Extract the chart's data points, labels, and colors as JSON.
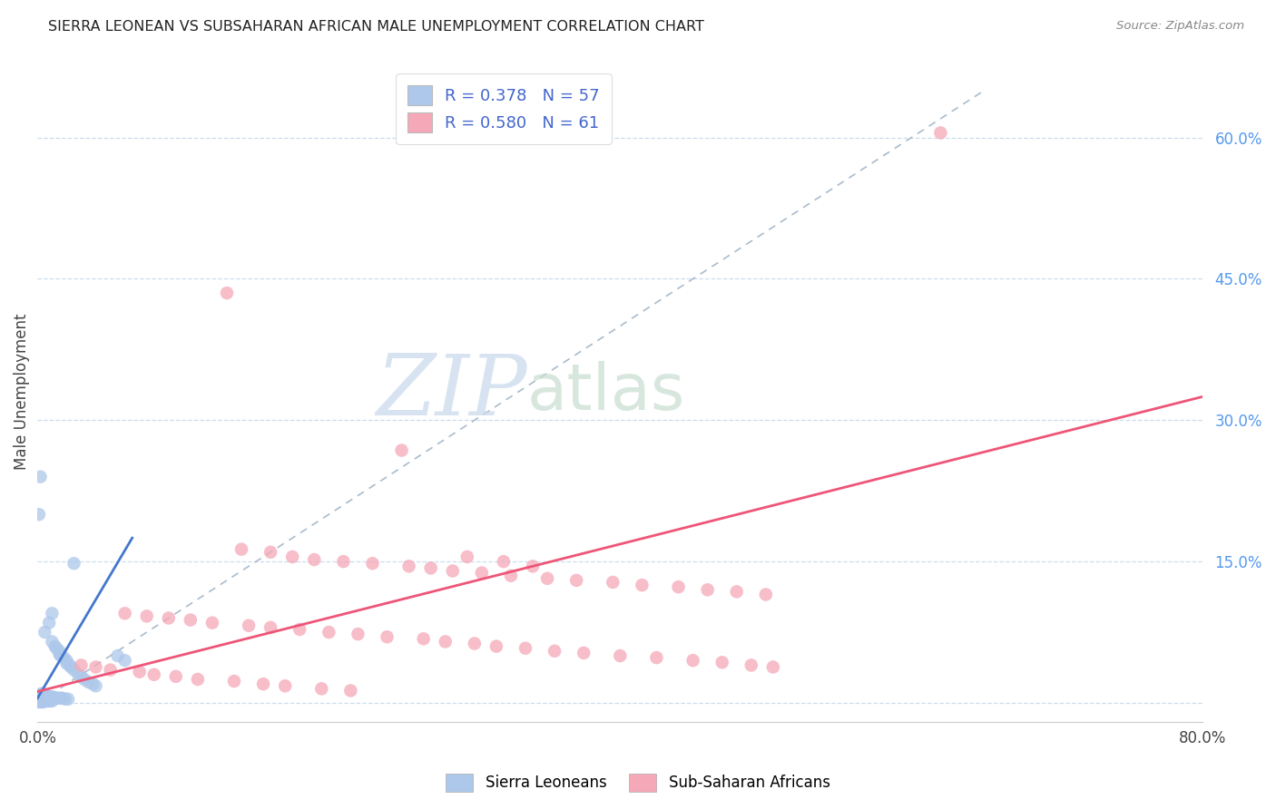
{
  "title": "SIERRA LEONEAN VS SUBSAHARAN AFRICAN MALE UNEMPLOYMENT CORRELATION CHART",
  "source": "Source: ZipAtlas.com",
  "ylabel": "Male Unemployment",
  "xlim": [
    0.0,
    0.8
  ],
  "ylim": [
    -0.02,
    0.68
  ],
  "y_tick_right": [
    0.0,
    0.15,
    0.3,
    0.45,
    0.6
  ],
  "y_tick_right_labels": [
    "",
    "15.0%",
    "30.0%",
    "45.0%",
    "60.0%"
  ],
  "legend_r1": "R = 0.378",
  "legend_n1": "N = 57",
  "legend_r2": "R = 0.580",
  "legend_n2": "N = 61",
  "color_sl": "#adc8ea",
  "color_ssa": "#f5a8b8",
  "color_sl_line": "#4477cc",
  "color_ssa_line": "#ee5577",
  "watermark_zip": "ZIP",
  "watermark_atlas": "atlas",
  "sl_x": [
    0.005,
    0.008,
    0.01,
    0.01,
    0.012,
    0.013,
    0.015,
    0.015,
    0.016,
    0.018,
    0.02,
    0.02,
    0.022,
    0.023,
    0.025,
    0.025,
    0.028,
    0.03,
    0.032,
    0.035,
    0.038,
    0.04,
    0.003,
    0.003,
    0.004,
    0.005,
    0.006,
    0.007,
    0.008,
    0.009,
    0.01,
    0.011,
    0.013,
    0.014,
    0.016,
    0.017,
    0.019,
    0.021,
    0.002,
    0.002,
    0.003,
    0.004,
    0.005,
    0.006,
    0.007,
    0.008,
    0.009,
    0.01,
    0.001,
    0.001,
    0.002,
    0.003,
    0.004,
    0.055,
    0.06,
    0.001,
    0.002
  ],
  "sl_y": [
    0.075,
    0.085,
    0.095,
    0.065,
    0.06,
    0.058,
    0.055,
    0.052,
    0.05,
    0.048,
    0.045,
    0.042,
    0.04,
    0.038,
    0.035,
    0.148,
    0.03,
    0.028,
    0.025,
    0.022,
    0.02,
    0.018,
    0.01,
    0.009,
    0.008,
    0.008,
    0.007,
    0.007,
    0.007,
    0.006,
    0.006,
    0.006,
    0.005,
    0.005,
    0.005,
    0.005,
    0.004,
    0.004,
    0.003,
    0.003,
    0.003,
    0.003,
    0.002,
    0.002,
    0.002,
    0.002,
    0.002,
    0.002,
    0.001,
    0.001,
    0.001,
    0.001,
    0.001,
    0.05,
    0.045,
    0.2,
    0.24
  ],
  "ssa_x": [
    0.62,
    0.13,
    0.25,
    0.295,
    0.32,
    0.34,
    0.14,
    0.16,
    0.175,
    0.19,
    0.21,
    0.23,
    0.255,
    0.27,
    0.285,
    0.305,
    0.325,
    0.35,
    0.37,
    0.395,
    0.415,
    0.44,
    0.46,
    0.48,
    0.5,
    0.06,
    0.075,
    0.09,
    0.105,
    0.12,
    0.145,
    0.16,
    0.18,
    0.2,
    0.22,
    0.24,
    0.265,
    0.28,
    0.3,
    0.315,
    0.335,
    0.355,
    0.375,
    0.4,
    0.425,
    0.45,
    0.47,
    0.03,
    0.04,
    0.05,
    0.07,
    0.08,
    0.095,
    0.11,
    0.135,
    0.155,
    0.17,
    0.195,
    0.215,
    0.49,
    0.505
  ],
  "ssa_y": [
    0.605,
    0.435,
    0.268,
    0.155,
    0.15,
    0.145,
    0.163,
    0.16,
    0.155,
    0.152,
    0.15,
    0.148,
    0.145,
    0.143,
    0.14,
    0.138,
    0.135,
    0.132,
    0.13,
    0.128,
    0.125,
    0.123,
    0.12,
    0.118,
    0.115,
    0.095,
    0.092,
    0.09,
    0.088,
    0.085,
    0.082,
    0.08,
    0.078,
    0.075,
    0.073,
    0.07,
    0.068,
    0.065,
    0.063,
    0.06,
    0.058,
    0.055,
    0.053,
    0.05,
    0.048,
    0.045,
    0.043,
    0.04,
    0.038,
    0.035,
    0.033,
    0.03,
    0.028,
    0.025,
    0.023,
    0.02,
    0.018,
    0.015,
    0.013,
    0.04,
    0.038
  ],
  "sl_line_x": [
    0.0,
    0.065
  ],
  "sl_line_y": [
    0.005,
    0.175
  ],
  "ssa_line_x": [
    0.0,
    0.8
  ],
  "ssa_line_y": [
    0.012,
    0.325
  ],
  "diag_line_x": [
    0.0,
    0.65
  ],
  "diag_line_y": [
    0.0,
    0.65
  ]
}
